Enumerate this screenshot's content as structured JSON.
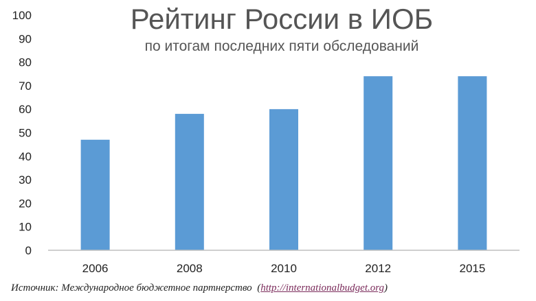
{
  "chart_data": {
    "type": "bar",
    "title": "Рейтинг России в ИОБ",
    "subtitle": "по итогам последних пяти обследований",
    "categories": [
      "2006",
      "2008",
      "2010",
      "2012",
      "2015"
    ],
    "values": [
      47,
      58,
      60,
      74,
      74
    ],
    "ylim": [
      0,
      100
    ],
    "yticks": [
      "0",
      "10",
      "20",
      "30",
      "40",
      "50",
      "60",
      "70",
      "80",
      "90",
      "100"
    ],
    "xlabel": "",
    "ylabel": "",
    "grid": false,
    "bar_color": "#5b9bd5"
  },
  "footer": {
    "source_text": "Источник: Международное бюджетное партнерство",
    "source_link": "http://internationalbudget.org"
  }
}
